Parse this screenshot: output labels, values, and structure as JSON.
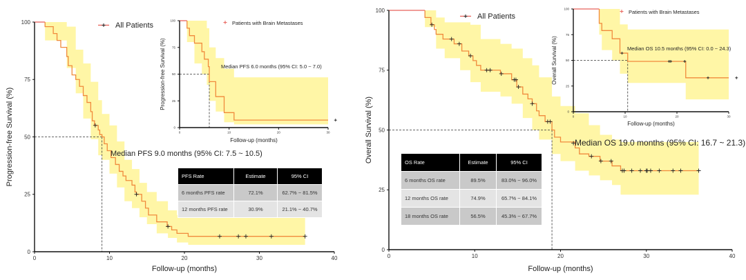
{
  "colors": {
    "curve": "#f08a3c",
    "curve_start": "#e8615a",
    "ci_band": "#fff6a6",
    "censor": "#222222",
    "table_header": "#000000"
  },
  "chart_data": [
    {
      "id": "pfs_all",
      "type": "line",
      "step": true,
      "xlabel": "Follow-up (months)",
      "ylabel": "Progression-free Survival (%)",
      "xlim": [
        0,
        40
      ],
      "ylim": [
        0,
        100
      ],
      "xticks": [
        0,
        10,
        20,
        30,
        40
      ],
      "yticks": [
        0,
        25,
        50,
        75,
        100
      ],
      "legend": "All Patients",
      "annotation": "Median PFS 9.0 months (95% CI: 7.5 ~ 10.5)",
      "median": 9.0,
      "series": [
        {
          "name": "All Patients",
          "steps": [
            [
              0,
              100
            ],
            [
              1.4,
              98
            ],
            [
              2.5,
              95
            ],
            [
              3,
              92
            ],
            [
              3.5,
              89
            ],
            [
              4.3,
              85
            ],
            [
              4.5,
              81
            ],
            [
              5,
              77
            ],
            [
              5.5,
              75
            ],
            [
              6,
              72
            ],
            [
              6.5,
              68
            ],
            [
              7,
              65
            ],
            [
              7.5,
              61
            ],
            [
              7.7,
              57
            ],
            [
              8,
              55
            ],
            [
              8.5,
              53
            ],
            [
              8.7,
              51
            ],
            [
              9,
              50
            ],
            [
              9.3,
              47
            ],
            [
              9.7,
              44
            ],
            [
              10.2,
              41
            ],
            [
              10.8,
              38
            ],
            [
              11.3,
              35
            ],
            [
              11.8,
              33
            ],
            [
              12.2,
              31
            ],
            [
              13,
              29
            ],
            [
              13.4,
              26
            ],
            [
              13.6,
              25
            ],
            [
              14.3,
              22
            ],
            [
              14.8,
              19
            ],
            [
              15.2,
              16
            ],
            [
              16.3,
              13
            ],
            [
              17.7,
              11
            ],
            [
              18.3,
              9.5
            ],
            [
              19,
              8
            ],
            [
              20.5,
              6.7
            ],
            [
              36.1,
              6.7
            ]
          ],
          "censored": [
            [
              8.1,
              55
            ],
            [
              13.6,
              25
            ],
            [
              17.8,
              11
            ],
            [
              24.7,
              6.7
            ],
            [
              27.2,
              6.7
            ],
            [
              28.2,
              6.7
            ],
            [
              31.6,
              6.7
            ],
            [
              36.1,
              6.7
            ]
          ],
          "ci": [
            [
              0,
              100,
              100
            ],
            [
              1.4,
              92,
              100
            ],
            [
              4.3,
              80,
              98
            ],
            [
              5.5,
              69,
              88
            ],
            [
              6.5,
              58,
              82
            ],
            [
              7.5,
              49,
              74
            ],
            [
              8.5,
              42,
              66
            ],
            [
              9,
              40,
              60
            ],
            [
              10,
              34,
              55
            ],
            [
              11,
              28,
              48
            ],
            [
              12,
              22,
              40
            ],
            [
              13,
              19,
              36
            ],
            [
              14,
              15,
              30
            ],
            [
              15,
              12,
              26
            ],
            [
              16.3,
              8,
              22
            ],
            [
              17.8,
              6,
              18
            ],
            [
              19,
              4,
              16
            ],
            [
              20.5,
              3,
              15
            ],
            [
              36.1,
              3,
              15
            ]
          ]
        }
      ]
    },
    {
      "id": "pfs_brain",
      "type": "line",
      "step": true,
      "xlabel": "Follow-up (months)",
      "ylabel": "Progression-free Survival (%)",
      "xlim": [
        0,
        30
      ],
      "ylim": [
        0,
        100
      ],
      "xticks": [
        0,
        10,
        20,
        30
      ],
      "yticks": [
        0,
        25,
        50,
        75,
        100
      ],
      "legend": "Patients with Brain Metastases",
      "annotation": "Median PFS 6.0 months (95% CI: 5.0 ~ 7.0)",
      "median": 6.0,
      "series": [
        {
          "name": "Patients with Brain Metastases",
          "steps": [
            [
              0,
              100
            ],
            [
              1.5,
              93
            ],
            [
              2,
              86
            ],
            [
              3,
              79
            ],
            [
              4.5,
              71
            ],
            [
              5,
              64
            ],
            [
              5.8,
              57
            ],
            [
              6,
              43
            ],
            [
              7.3,
              29
            ],
            [
              9,
              14
            ],
            [
              11,
              7
            ],
            [
              30,
              7
            ]
          ],
          "censored": [
            [
              31.5,
              7
            ]
          ],
          "ci": [
            [
              0,
              100,
              100
            ],
            [
              1.5,
              80,
              100
            ],
            [
              3,
              60,
              100
            ],
            [
              4.5,
              50,
              100
            ],
            [
              5.5,
              40,
              93
            ],
            [
              6,
              25,
              75
            ],
            [
              7.3,
              15,
              65
            ],
            [
              9,
              5,
              55
            ],
            [
              11,
              3,
              47
            ],
            [
              30,
              3,
              47
            ]
          ]
        }
      ]
    },
    {
      "id": "os_all",
      "type": "line",
      "step": true,
      "xlabel": "Follow-up (months)",
      "ylabel": "Overall Survival (%)",
      "xlim": [
        0,
        40
      ],
      "ylim": [
        0,
        100
      ],
      "xticks": [
        0,
        10,
        20,
        30,
        40
      ],
      "yticks": [
        0,
        25,
        50,
        75,
        100
      ],
      "legend": "All Patients",
      "annotation": "Median OS 19.0 months (95% CI: 16.7 ~ 21.3)",
      "median": 19.0,
      "series": [
        {
          "name": "All Patients",
          "steps": [
            [
              0,
              100
            ],
            [
              4.2,
              97
            ],
            [
              4.9,
              94
            ],
            [
              5.3,
              92
            ],
            [
              5.5,
              90
            ],
            [
              6.3,
              88
            ],
            [
              7.6,
              86
            ],
            [
              8.5,
              83
            ],
            [
              9.3,
              81
            ],
            [
              9.8,
              79
            ],
            [
              10.2,
              77
            ],
            [
              10.7,
              75
            ],
            [
              13,
              73.5
            ],
            [
              14.3,
              71
            ],
            [
              14.9,
              68
            ],
            [
              15.6,
              65
            ],
            [
              16.2,
              63
            ],
            [
              16.7,
              61
            ],
            [
              17.2,
              58
            ],
            [
              17.5,
              56
            ],
            [
              18.2,
              53.5
            ],
            [
              19,
              50
            ],
            [
              19.3,
              47
            ],
            [
              20,
              45
            ],
            [
              21.7,
              42.5
            ],
            [
              22.2,
              40
            ],
            [
              23.3,
              39
            ],
            [
              24.6,
              37
            ],
            [
              26,
              35
            ],
            [
              27,
              33
            ],
            [
              36.1,
              33
            ]
          ],
          "censored": [
            [
              5.0,
              94
            ],
            [
              7.3,
              88
            ],
            [
              8.2,
              86
            ],
            [
              9.5,
              81
            ],
            [
              11.4,
              75
            ],
            [
              11.8,
              75
            ],
            [
              13.1,
              73.5
            ],
            [
              14.6,
              71
            ],
            [
              14.8,
              71
            ],
            [
              15.1,
              68
            ],
            [
              16.7,
              61
            ],
            [
              18.5,
              53.5
            ],
            [
              18.8,
              53.5
            ],
            [
              21.5,
              44.5
            ],
            [
              23.6,
              39
            ],
            [
              24.7,
              37
            ],
            [
              25.9,
              37
            ],
            [
              27.2,
              33
            ],
            [
              27.4,
              33
            ],
            [
              28.3,
              33
            ],
            [
              29.3,
              33
            ],
            [
              30.0,
              33
            ],
            [
              30.1,
              33
            ],
            [
              30.5,
              33
            ],
            [
              31.5,
              33
            ],
            [
              33.1,
              33
            ],
            [
              34.0,
              33
            ],
            [
              36.1,
              33
            ]
          ],
          "ci": [
            [
              0,
              100,
              100
            ],
            [
              4.2,
              93,
              100
            ],
            [
              5.5,
              84,
              97
            ],
            [
              6.5,
              80,
              95
            ],
            [
              8.3,
              75,
              95
            ],
            [
              9.5,
              70,
              94
            ],
            [
              10.7,
              66,
              88
            ],
            [
              13,
              64,
              86
            ],
            [
              14.3,
              61,
              84
            ],
            [
              15.6,
              55,
              80
            ],
            [
              16.7,
              50,
              77
            ],
            [
              17.5,
              46,
              72
            ],
            [
              19,
              40,
              64
            ],
            [
              20,
              37,
              60
            ],
            [
              21.7,
              33,
              57
            ],
            [
              23.3,
              31,
              52
            ],
            [
              24.6,
              29,
              48
            ],
            [
              26,
              27,
              46
            ],
            [
              27,
              23,
              45
            ],
            [
              36.1,
              23,
              45
            ]
          ]
        }
      ]
    },
    {
      "id": "os_brain",
      "type": "line",
      "step": true,
      "xlabel": "Follow-up (months)",
      "ylabel": "Overall Survival (%)",
      "xlim": [
        0,
        30
      ],
      "ylim": [
        0,
        100
      ],
      "xticks": [
        0,
        10,
        20,
        30
      ],
      "yticks": [
        0,
        25,
        50,
        75,
        100
      ],
      "legend": "Patients with Brain Metastases",
      "annotation": "Median OS 10.5 months (95% CI: 0.0 ~ 24.3)",
      "median": 10.5,
      "series": [
        {
          "name": "Patients with Brain Metastases",
          "steps": [
            [
              0,
              100
            ],
            [
              5,
              86
            ],
            [
              5.5,
              79
            ],
            [
              7.5,
              71
            ],
            [
              9,
              57
            ],
            [
              10.5,
              49
            ],
            [
              21.7,
              33
            ],
            [
              30,
              33
            ]
          ],
          "censored": [
            [
              9.4,
              57
            ],
            [
              18.5,
              49
            ],
            [
              18.8,
              49
            ],
            [
              21.5,
              49
            ],
            [
              26,
              33
            ],
            [
              31.5,
              33
            ]
          ],
          "ci": [
            [
              0,
              100,
              100
            ],
            [
              5,
              75,
              100
            ],
            [
              5.5,
              60,
              100
            ],
            [
              7.5,
              50,
              100
            ],
            [
              9,
              37,
              85
            ],
            [
              10.5,
              28,
              80
            ],
            [
              21.7,
              12,
              80
            ],
            [
              30,
              12,
              85
            ]
          ]
        }
      ]
    }
  ],
  "tables": {
    "pfs": {
      "headers": [
        "PFS Rate",
        "Estimate",
        "95% CI"
      ],
      "rows": [
        [
          "6 months PFS rate",
          "72.1%",
          "62.7% ~ 81.5%"
        ],
        [
          "12 months PFS rate",
          "30.9%",
          "21.1% ~ 40.7%"
        ]
      ]
    },
    "os": {
      "headers": [
        "OS Rate",
        "Estimate",
        "95% CI"
      ],
      "rows": [
        [
          "6 months OS rate",
          "89.5%",
          "83.0% ~ 96.0%"
        ],
        [
          "12 months OS rate",
          "74.9%",
          "65.7% ~ 84.1%"
        ],
        [
          "18 months OS rate",
          "56.5%",
          "45.3% ~ 67.7%"
        ]
      ]
    }
  }
}
